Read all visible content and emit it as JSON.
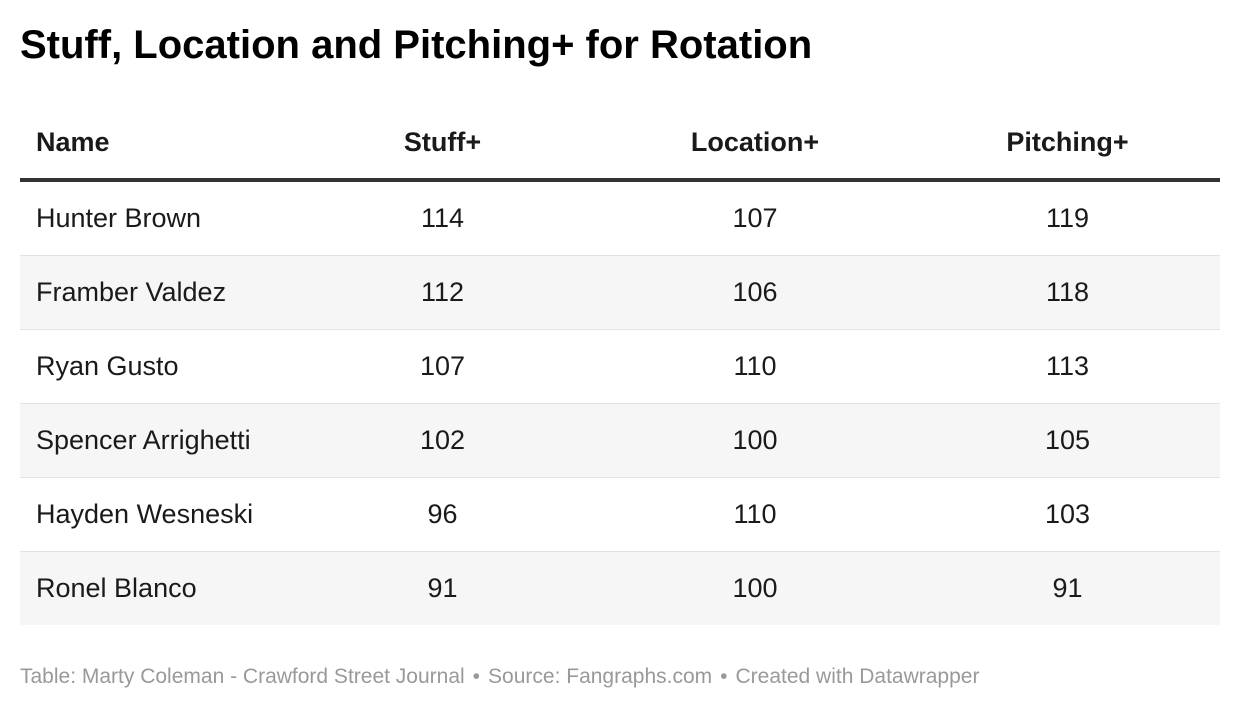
{
  "title": "Stuff, Location and Pitching+ for Rotation",
  "chart_data": {
    "type": "table",
    "title": "Stuff, Location and Pitching+ for Rotation",
    "columns": [
      "Name",
      "Stuff+",
      "Location+",
      "Pitching+"
    ],
    "rows": [
      [
        "Hunter Brown",
        "114",
        "107",
        "119"
      ],
      [
        "Framber Valdez",
        "112",
        "106",
        "118"
      ],
      [
        "Ryan Gusto",
        "107",
        "110",
        "113"
      ],
      [
        "Spencer Arrighetti",
        "102",
        "100",
        "105"
      ],
      [
        "Hayden Wesneski",
        "96",
        "110",
        "103"
      ],
      [
        "Ronel Blanco",
        "91",
        "100",
        "91"
      ]
    ]
  },
  "footer": {
    "credit": "Table: Marty Coleman - Crawford Street Journal",
    "separator": "•",
    "source": "Source: Fangraphs.com",
    "created": "Created with Datawrapper"
  },
  "colors": {
    "text": "#1a1a1a",
    "header_rule": "#333333",
    "row_stripe": "#f6f6f6",
    "footer_text": "#999999"
  }
}
